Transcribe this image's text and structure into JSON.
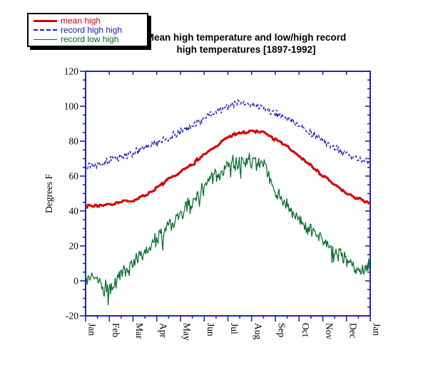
{
  "page": {
    "background": "#ffffff"
  },
  "header": {
    "title_line1": "Mean high temperature and low/high record",
    "title_line2": "high temperatures [1897-1992]"
  },
  "chart_data": {
    "type": "line",
    "title": "Mean high temperature and low/high record high temperatures [1897-1992]",
    "xlabel": "",
    "ylabel": "Degrees F",
    "ylim": [
      -20,
      120
    ],
    "yticks": [
      -20,
      0,
      20,
      40,
      60,
      80,
      100,
      120
    ],
    "y_minor_step": 5,
    "x_months": [
      "Jan",
      "Feb",
      "Mar",
      "Apr",
      "May",
      "Jun",
      "Jul",
      "Aug",
      "Sep",
      "Oct",
      "Nov",
      "Dec",
      "Jan"
    ],
    "x_minor": "mid-month",
    "grid": false,
    "axis_color": "#2222bb",
    "tick_label_color": "#000000",
    "legend_position": "outside-top-left",
    "anchor_unit": "half-month anchors Jan 1 through following Jan 1 (25 points)",
    "series": [
      {
        "name": "mean high",
        "color": "#d40000",
        "width": 3,
        "dash": "",
        "noise": 1.0,
        "hold": 3,
        "round": true,
        "spike": 0,
        "anchors": [
          43,
          43,
          44,
          45,
          46,
          49,
          53,
          58,
          62,
          67,
          72,
          77,
          82,
          85,
          86,
          85,
          81,
          77,
          71,
          66,
          60,
          55,
          50,
          47,
          44
        ]
      },
      {
        "name": "record high high",
        "color": "#1a1ac0",
        "width": 1.4,
        "dash": "4 3",
        "noise": 2.6,
        "hold": 1,
        "round": false,
        "spike": 0,
        "anchors": [
          66,
          67,
          69,
          71,
          73,
          76,
          79,
          82,
          85,
          89,
          93,
          97,
          100,
          102,
          101,
          99,
          96,
          93,
          89,
          85,
          80,
          76,
          72,
          70,
          68
        ]
      },
      {
        "name": "record low high",
        "color": "#006b28",
        "width": 1.2,
        "dash": "",
        "noise": 5.5,
        "hold": 1,
        "round": false,
        "spike": 8,
        "anchors": [
          3,
          1,
          -5,
          3,
          10,
          17,
          24,
          31,
          38,
          46,
          54,
          60,
          66,
          69,
          68,
          67,
          50,
          44,
          35,
          29,
          23,
          17,
          11,
          6,
          8
        ]
      }
    ]
  }
}
